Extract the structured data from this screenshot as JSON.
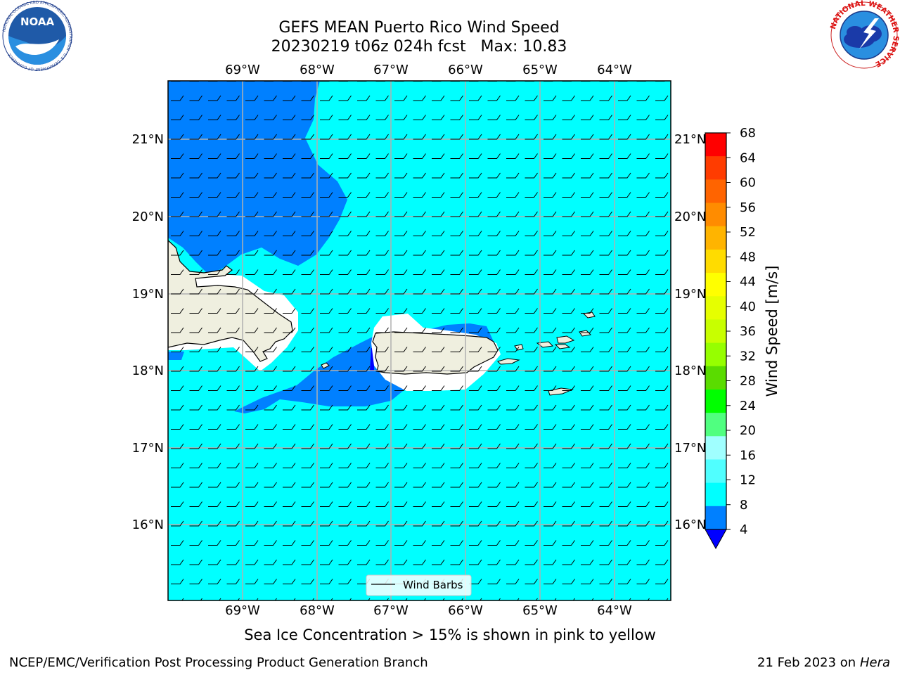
{
  "title_line1": "GEFS MEAN Puerto Rico Wind Speed",
  "title_line2": "20230219 t06z 024h fcst   Max: 10.83",
  "caption": "Sea Ice Concentration > 15% is shown in pink to yellow",
  "footer_left": "NCEP/EMC/Verification Post Processing Product Generation Branch",
  "footer_right_date": "21 Feb 2023 on",
  "footer_right_host": "Hera",
  "legend_label": "Wind Barbs",
  "logos": {
    "noaa_text": "NOAA",
    "noaa_ring": "NATIONAL OCEANIC AND ATMOSPHERIC ADMINISTRATION · U.S. DEPARTMENT OF COMMERCE",
    "nws_ring": "NATIONAL WEATHER SERVICE"
  },
  "map": {
    "lon_labels": [
      "69°W",
      "68°W",
      "67°W",
      "66°W",
      "65°W",
      "64°W"
    ],
    "lat_labels": [
      "21°N",
      "20°N",
      "19°N",
      "18°N",
      "17°N",
      "16°N"
    ],
    "colors": {
      "ocean_cyan": "#00ffff",
      "low_wind_blue": "#0080ff",
      "very_low_blue": "#0000ff",
      "land": "#efefdf",
      "grid": "#b0b0b0"
    }
  },
  "colorbar": {
    "label": "Wind Speed [m/s]",
    "ticks": [
      "68",
      "64",
      "60",
      "56",
      "52",
      "48",
      "44",
      "40",
      "36",
      "32",
      "28",
      "24",
      "20",
      "16",
      "12",
      "8",
      "4"
    ],
    "colors": [
      "#ff0000",
      "#ff3c00",
      "#ff6400",
      "#ff8c00",
      "#ffb400",
      "#ffdc00",
      "#ffff00",
      "#e6ff00",
      "#c8ff00",
      "#96ff00",
      "#5adc00",
      "#00ff00",
      "#50ff80",
      "#a0ffff",
      "#50ffff",
      "#00ffff",
      "#0080ff"
    ],
    "extend_color": "#0000ff"
  }
}
